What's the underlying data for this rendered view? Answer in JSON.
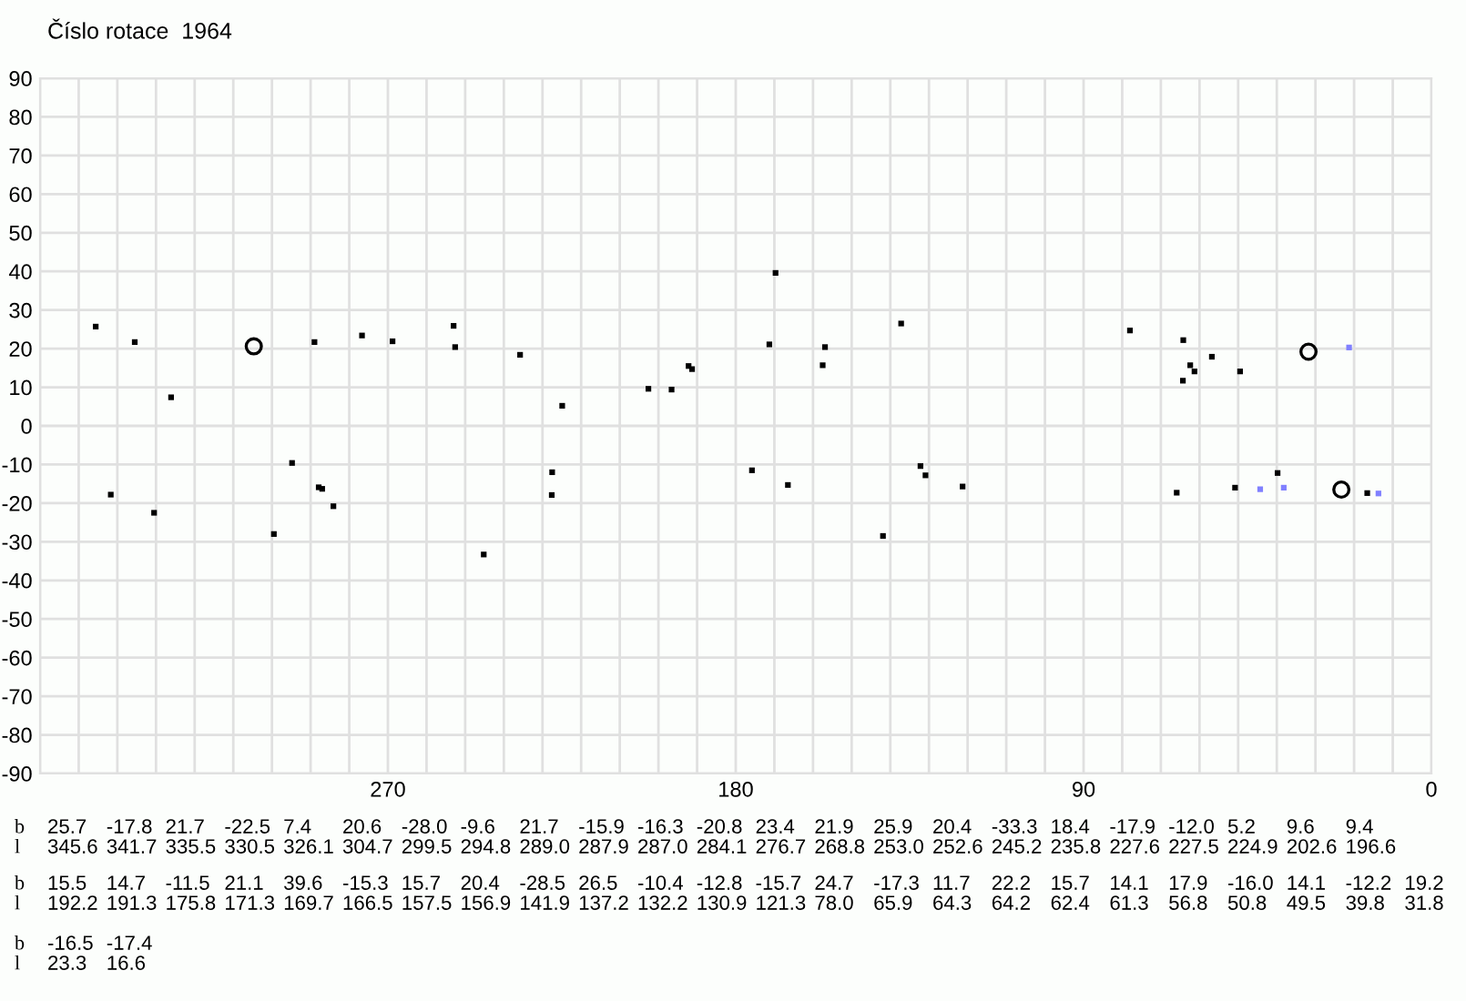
{
  "chart_data": {
    "type": "scatter",
    "title": "Číslo rotace  1964",
    "annotations": [
      "b",
      "l",
      "25.7",
      "345.6",
      "-17.8",
      "341.7",
      "21.7",
      "335.5",
      "-22.5",
      "330.5",
      "7.4",
      "326.1",
      "20.6",
      "304.7",
      "-28.0",
      "299.5",
      "-9.6",
      "294.8",
      "21.7",
      "289.0",
      "-15.9",
      "287.9",
      "-16.3",
      "287.0",
      "-20.8",
      "284.1",
      "23.4",
      "276.7",
      "21.9",
      "268.8",
      "25.9",
      "253.0",
      "20.4",
      "252.6",
      "-33.3",
      "245.2",
      "18.4",
      "235.8",
      "-17.9",
      "227.6",
      "-12.0",
      "227.5",
      "5.2",
      "224.9",
      "9.6",
      "202.6",
      "9.4",
      "196.6",
      "15.5",
      "192.2",
      "14.7",
      "191.3",
      "-11.5",
      "175.8",
      "21.1",
      "171.3",
      "39.6",
      "169.7",
      "-15.3",
      "166.5",
      "15.7",
      "157.5",
      "20.4",
      "156.9",
      "-28.5",
      "141.9",
      "26.5",
      "137.2",
      "-10.4",
      "132.2",
      "-12.8",
      "130.9",
      "-15.7",
      "121.3",
      "24.7",
      "78.0",
      "-17.3",
      "65.9",
      "11.7",
      "64.3",
      "22.2",
      "64.2",
      "15.7",
      "62.4",
      "14.1",
      "61.3",
      "17.9",
      "56.8",
      "-16.0",
      "50.8",
      "14.1",
      "49.5",
      "-12.2",
      "39.8",
      "19.2",
      "31.8",
      "-16.5",
      "23.3",
      "-17.4",
      "16.6"
    ],
    "series": [
      {
        "color": "#000000",
        "marker": "square",
        "x": [
          345.6,
          341.7,
          335.5,
          330.5,
          326.1,
          299.5,
          294.8,
          289.0,
          287.9,
          287.0,
          284.1,
          276.7,
          268.8,
          253.0,
          252.6,
          245.2,
          235.8,
          227.6,
          227.5,
          224.9,
          202.6,
          196.6,
          192.2,
          191.3,
          175.8,
          171.3,
          169.7,
          166.5,
          157.5,
          156.9,
          141.9,
          137.2,
          132.2,
          130.9,
          121.3,
          78.0,
          65.9,
          64.3,
          64.2,
          62.4,
          61.3,
          56.8,
          50.8,
          49.5,
          39.8,
          16.6
        ],
        "values": [
          25.7,
          -17.8,
          21.7,
          -22.5,
          7.4,
          -28.0,
          -9.6,
          21.7,
          -15.9,
          -16.3,
          -20.8,
          23.4,
          21.9,
          25.9,
          20.4,
          -33.3,
          18.4,
          -17.9,
          -12.0,
          5.2,
          9.6,
          9.4,
          15.5,
          14.7,
          -11.5,
          21.1,
          39.6,
          -15.3,
          15.7,
          20.4,
          -28.5,
          26.5,
          -10.4,
          -12.8,
          -15.7,
          24.7,
          -17.3,
          11.7,
          22.2,
          15.7,
          14.1,
          17.9,
          -16.0,
          14.1,
          -12.2,
          -17.4
        ]
      },
      {
        "color": "#000000",
        "marker": "circle",
        "x": [
          304.7,
          31.8,
          23.3
        ],
        "values": [
          20.6,
          19.2,
          -16.5
        ]
      },
      {
        "color": "#8080ff",
        "marker": "square",
        "x": [
          44.3,
          38.2,
          21.3,
          13.7
        ],
        "values": [
          -16.4,
          -16.0,
          20.3,
          -17.5
        ]
      }
    ],
    "xlim": [
      360,
      0
    ],
    "xticks": [
      {
        "value": 360,
        "label": null
      },
      {
        "value": 350,
        "label": null
      },
      {
        "value": 340,
        "label": null
      },
      {
        "value": 330,
        "label": null
      },
      {
        "value": 320,
        "label": null
      },
      {
        "value": 310,
        "label": null
      },
      {
        "value": 300,
        "label": null
      },
      {
        "value": 290,
        "label": null
      },
      {
        "value": 280,
        "label": null
      },
      270,
      {
        "value": 260,
        "label": null
      },
      {
        "value": 250,
        "label": null
      },
      {
        "value": 240,
        "label": null
      },
      {
        "value": 230,
        "label": null
      },
      {
        "value": 220,
        "label": null
      },
      {
        "value": 210,
        "label": null
      },
      {
        "value": 200,
        "label": null
      },
      {
        "value": 190,
        "label": null
      },
      180,
      {
        "value": 170,
        "label": null
      },
      {
        "value": 160,
        "label": null
      },
      {
        "value": 150,
        "label": null
      },
      {
        "value": 140,
        "label": null
      },
      {
        "value": 130,
        "label": null
      },
      {
        "value": 120,
        "label": null
      },
      {
        "value": 110,
        "label": null
      },
      {
        "value": 100,
        "label": null
      },
      90,
      {
        "value": 80,
        "label": null
      },
      {
        "value": 70,
        "label": null
      },
      {
        "value": 60,
        "label": null
      },
      {
        "value": 50,
        "label": null
      },
      {
        "value": 40,
        "label": null
      },
      {
        "value": 30,
        "label": null
      },
      {
        "value": 20,
        "label": null
      },
      {
        "value": 10,
        "label": null
      },
      0
    ],
    "ylim": [
      -90,
      90
    ],
    "yticks": [
      -90,
      -80,
      -70,
      -60,
      -50,
      -40,
      -30,
      -20,
      -10,
      0,
      10,
      20,
      30,
      40,
      50,
      60,
      70,
      80,
      90
    ],
    "grid": true
  }
}
